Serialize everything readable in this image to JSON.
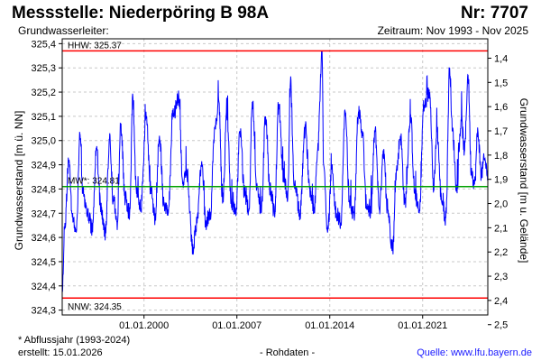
{
  "header": {
    "title": "Messstelle: Niederpöring B 98A",
    "number": "Nr: 7707",
    "aquifer_label": "Grundwasserleiter:",
    "period": "Zeitraum: Nov 1993 - Nov 2025"
  },
  "footer": {
    "footnote": "* Abflussjahr (1993-2024)",
    "created": "erstellt:  15.01.2026",
    "raw": "- Rohdaten -",
    "source": "Quelle: www.lfu.bayern.de"
  },
  "colors": {
    "series": "#0000ff",
    "extreme_lines": "#ff0000",
    "mean_line": "#00a000",
    "grid": "#c8c8c8"
  },
  "chart_data": {
    "type": "line",
    "ylabel": "Grundwasserstand [m ü. NN]",
    "y2label": "Grundwasserstand [m u. Gelände]",
    "ylim": [
      324.28,
      325.42
    ],
    "xlim": [
      "1993-11-01",
      "2025-11-30"
    ],
    "y_ticks": [
      {
        "v": 325.4,
        "label": "325,4"
      },
      {
        "v": 325.3,
        "label": "325,3"
      },
      {
        "v": 325.2,
        "label": "325,2"
      },
      {
        "v": 325.1,
        "label": "325,1"
      },
      {
        "v": 325.0,
        "label": "325,0"
      },
      {
        "v": 324.9,
        "label": "324,9"
      },
      {
        "v": 324.8,
        "label": "324,8"
      },
      {
        "v": 324.7,
        "label": "324,7"
      },
      {
        "v": 324.6,
        "label": "324,6"
      },
      {
        "v": 324.5,
        "label": "324,5"
      },
      {
        "v": 324.4,
        "label": "324,4"
      },
      {
        "v": 324.3,
        "label": "324,3"
      }
    ],
    "y2_ticks": [
      {
        "v": 1.4,
        "label": "1,4"
      },
      {
        "v": 1.5,
        "label": "1,5"
      },
      {
        "v": 1.6,
        "label": "1,6"
      },
      {
        "v": 1.7,
        "label": "1,7"
      },
      {
        "v": 1.8,
        "label": "1,8"
      },
      {
        "v": 1.9,
        "label": "1,9"
      },
      {
        "v": 2.0,
        "label": "2,0"
      },
      {
        "v": 2.1,
        "label": "2,1"
      },
      {
        "v": 2.2,
        "label": "2,2"
      },
      {
        "v": 2.3,
        "label": "2,3"
      },
      {
        "v": 2.4,
        "label": "2,4"
      },
      {
        "v": 2.5,
        "label": "2,5"
      }
    ],
    "x_ticks": [
      {
        "date": "2000-01-01",
        "label": "01.01.2000"
      },
      {
        "date": "2007-01-01",
        "label": "01.01.2007"
      },
      {
        "date": "2014-01-01",
        "label": "01.01.2014"
      },
      {
        "date": "2021-01-01",
        "label": "01.01.2021"
      }
    ],
    "reference_lines": [
      {
        "name": "HHW",
        "label": "HHW: 325.37",
        "value": 325.37
      },
      {
        "name": "MW",
        "label": "MW*: 324.81",
        "value": 324.81
      },
      {
        "name": "NNW",
        "label": "NNW: 324.35",
        "value": 324.35
      }
    ],
    "grid": true,
    "series": [
      {
        "points": [
          [
            "1993-11-01",
            324.38
          ],
          [
            "1994-01-15",
            324.66
          ],
          [
            "1994-05-01",
            324.92
          ],
          [
            "1994-08-01",
            324.7
          ],
          [
            "1994-12-01",
            324.63
          ],
          [
            "1995-03-01",
            325.03
          ],
          [
            "1995-06-01",
            324.78
          ],
          [
            "1995-10-01",
            324.7
          ],
          [
            "1996-02-01",
            324.64
          ],
          [
            "1996-06-01",
            324.96
          ],
          [
            "1996-10-01",
            324.72
          ],
          [
            "1997-02-01",
            324.62
          ],
          [
            "1997-06-01",
            325.03
          ],
          [
            "1997-09-01",
            324.75
          ],
          [
            "1998-01-01",
            324.66
          ],
          [
            "1998-04-01",
            325.06
          ],
          [
            "1998-08-01",
            324.76
          ],
          [
            "1998-12-01",
            324.7
          ],
          [
            "1999-03-01",
            325.18
          ],
          [
            "1999-06-01",
            324.8
          ],
          [
            "1999-10-01",
            324.72
          ],
          [
            "2000-03-01",
            325.1
          ],
          [
            "2000-07-01",
            324.8
          ],
          [
            "2000-11-01",
            324.68
          ],
          [
            "2001-03-01",
            325.02
          ],
          [
            "2001-07-01",
            324.74
          ],
          [
            "2001-11-01",
            324.7
          ],
          [
            "2002-03-01",
            325.1
          ],
          [
            "2002-08-15",
            325.18
          ],
          [
            "2002-12-01",
            324.82
          ],
          [
            "2003-04-01",
            324.86
          ],
          [
            "2003-09-01",
            324.56
          ],
          [
            "2004-01-01",
            324.66
          ],
          [
            "2004-05-01",
            324.9
          ],
          [
            "2004-09-01",
            324.66
          ],
          [
            "2005-01-01",
            324.7
          ],
          [
            "2005-05-01",
            325.05
          ],
          [
            "2005-08-25",
            325.16
          ],
          [
            "2005-12-01",
            324.74
          ],
          [
            "2006-04-01",
            325.1
          ],
          [
            "2006-08-01",
            324.74
          ],
          [
            "2006-12-01",
            324.7
          ],
          [
            "2007-04-01",
            325.04
          ],
          [
            "2007-08-01",
            324.78
          ],
          [
            "2007-12-01",
            324.72
          ],
          [
            "2008-03-01",
            325.16
          ],
          [
            "2008-07-01",
            324.82
          ],
          [
            "2008-11-01",
            324.7
          ],
          [
            "2009-03-01",
            325.1
          ],
          [
            "2009-07-01",
            324.8
          ],
          [
            "2009-11-01",
            324.7
          ],
          [
            "2010-03-01",
            325.14
          ],
          [
            "2010-07-01",
            324.86
          ],
          [
            "2010-11-01",
            324.76
          ],
          [
            "2011-01-15",
            325.24
          ],
          [
            "2011-05-01",
            324.82
          ],
          [
            "2011-10-01",
            324.7
          ],
          [
            "2012-03-01",
            325.05
          ],
          [
            "2012-07-01",
            324.8
          ],
          [
            "2012-11-01",
            324.72
          ],
          [
            "2013-02-01",
            324.96
          ],
          [
            "2013-06-03",
            325.37
          ],
          [
            "2013-07-15",
            324.9
          ],
          [
            "2013-11-01",
            324.62
          ],
          [
            "2014-03-01",
            324.88
          ],
          [
            "2014-07-01",
            324.7
          ],
          [
            "2014-11-01",
            324.66
          ],
          [
            "2015-03-01",
            325.12
          ],
          [
            "2015-07-01",
            324.74
          ],
          [
            "2015-11-01",
            324.7
          ],
          [
            "2016-03-01",
            325.12
          ],
          [
            "2016-06-15",
            325.04
          ],
          [
            "2016-10-01",
            324.74
          ],
          [
            "2017-02-01",
            324.7
          ],
          [
            "2017-06-01",
            325.04
          ],
          [
            "2017-10-01",
            324.72
          ],
          [
            "2018-01-15",
            324.96
          ],
          [
            "2018-05-01",
            324.72
          ],
          [
            "2018-10-01",
            324.56
          ],
          [
            "2019-01-15",
            324.88
          ],
          [
            "2019-05-01",
            325.02
          ],
          [
            "2019-09-01",
            324.74
          ],
          [
            "2020-02-01",
            325.1
          ],
          [
            "2020-06-01",
            324.78
          ],
          [
            "2020-10-01",
            324.7
          ],
          [
            "2021-02-01",
            325.14
          ],
          [
            "2021-07-15",
            325.2
          ],
          [
            "2021-11-01",
            324.8
          ],
          [
            "2022-02-01",
            325.04
          ],
          [
            "2022-06-01",
            324.76
          ],
          [
            "2022-10-01",
            324.68
          ],
          [
            "2023-01-15",
            325.3
          ],
          [
            "2023-04-01",
            325.04
          ],
          [
            "2023-08-01",
            324.8
          ],
          [
            "2023-12-01",
            325.08
          ],
          [
            "2024-03-01",
            324.96
          ],
          [
            "2024-06-05",
            325.27
          ],
          [
            "2024-09-01",
            324.88
          ],
          [
            "2024-12-01",
            324.82
          ],
          [
            "2025-03-01",
            325.04
          ],
          [
            "2025-06-01",
            324.86
          ],
          [
            "2025-09-01",
            324.92
          ],
          [
            "2025-11-30",
            324.86
          ]
        ]
      }
    ]
  }
}
